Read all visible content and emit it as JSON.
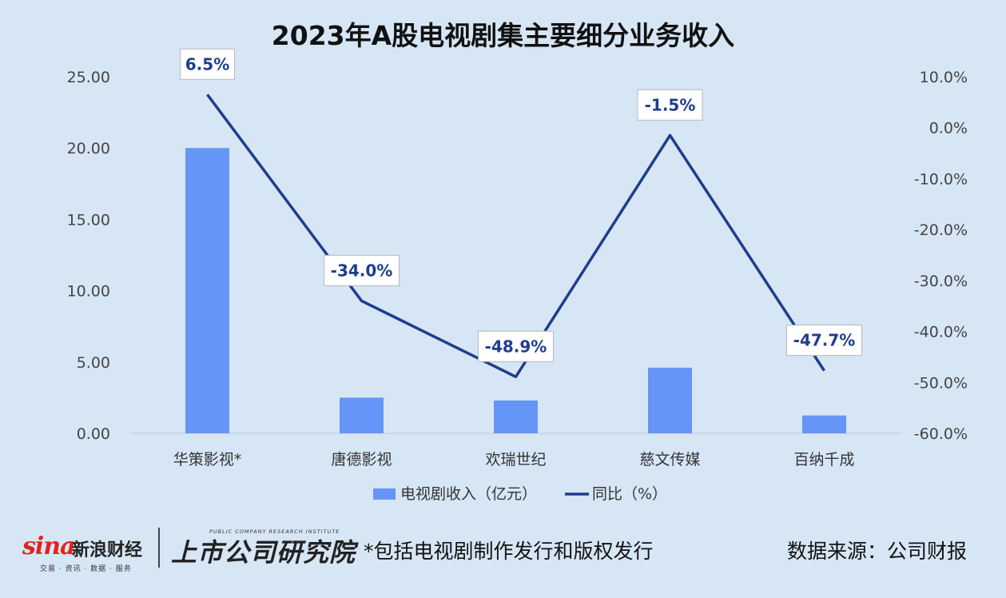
{
  "chart_data": {
    "type": "bar+line",
    "title": "2023年A股电视剧集主要细分业务收入",
    "categories": [
      "华策影视*",
      "唐德影视",
      "欢瑞世纪",
      "慈文传媒",
      "百纳千成"
    ],
    "series": [
      {
        "name": "电视剧收入（亿元）",
        "type": "bar",
        "axis": "left",
        "values": [
          20.0,
          2.5,
          2.3,
          4.6,
          1.25
        ],
        "color": "#6595f7"
      },
      {
        "name": "同比（%）",
        "type": "line",
        "axis": "right",
        "values": [
          6.5,
          -34.0,
          -48.9,
          -1.5,
          -47.7
        ],
        "labels": [
          "6.5%",
          "-34.0%",
          "-48.9%",
          "-1.5%",
          "-47.7%"
        ],
        "color": "#1e3d8c"
      }
    ],
    "y_left": {
      "ylim": [
        0,
        25
      ],
      "ticks": [
        0,
        5,
        10,
        15,
        20,
        25
      ],
      "tick_labels": [
        "0.00",
        "5.00",
        "10.00",
        "15.00",
        "20.00",
        "25.00"
      ]
    },
    "y_right": {
      "ylim": [
        -60,
        10
      ],
      "ticks": [
        10,
        0,
        -10,
        -20,
        -30,
        -40,
        -50,
        -60
      ],
      "tick_labels": [
        "10.0%",
        "0.0%",
        "-10.0%",
        "-20.0%",
        "-30.0%",
        "-40.0%",
        "-50.0%",
        "-60.0%"
      ]
    },
    "grid": true,
    "legend_position": "bottom"
  },
  "footer": {
    "sina_word": "sina",
    "sina_cn": "新浪财经",
    "sina_sub": "交易 · 资讯 · 数据 · 服务",
    "institute_en": "PUBLIC COMPANY RESEARCH INSTITUTE",
    "institute_cn": "上市公司研究院",
    "note": "*包括电视剧制作发行和版权发行",
    "source": "数据来源：公司财报"
  }
}
